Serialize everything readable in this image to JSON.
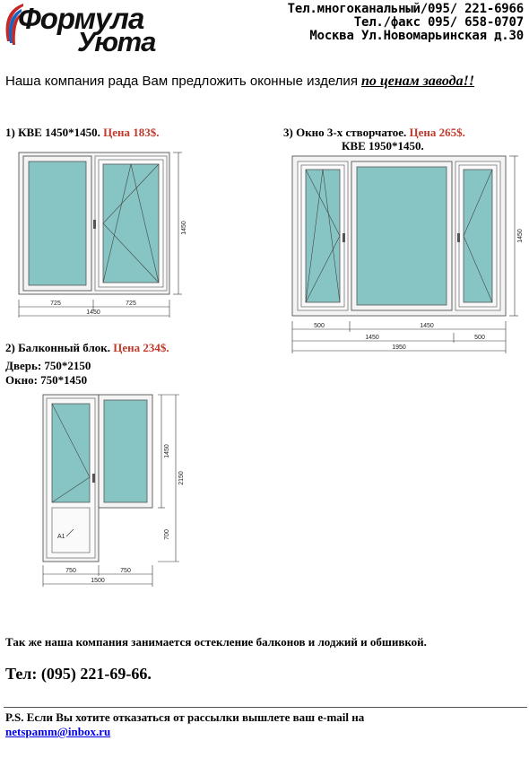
{
  "header": {
    "logo": {
      "line1": "Формула",
      "line2": "Уюта"
    },
    "contacts": [
      "Тел.многоканальный/095/ 221-6966",
      "Тел./факс 095/ 658-0707",
      "Москва  Ул.Новомарьинская  д.30"
    ]
  },
  "intro": {
    "text": "Наша компания рада Вам предложить оконные изделия",
    "promo": "по ценам завода!!"
  },
  "products": {
    "p1": {
      "title": "1) КВЕ 1450*1450.",
      "price": "Цена 183$.",
      "dims": {
        "left": "725",
        "right": "725",
        "total": "1450",
        "height": "1450"
      }
    },
    "p3": {
      "title": "3) Окно 3-х створчатое.",
      "price": "Цена 265$.",
      "subtitle": "КВЕ 1950*1450.",
      "dims": {
        "top_left": "500",
        "top_mid": "1450",
        "mid_left": "1450",
        "mid_right": "500",
        "total": "1950",
        "height": "1450"
      }
    },
    "p2": {
      "title": "2) Балконный блок.",
      "price": "Цена 234$.",
      "door": "Дверь:  750*2150",
      "window": "Окно:   750*1450",
      "dims": {
        "left": "750",
        "right": "750",
        "total": "1500",
        "h_window": "1450",
        "h_door": "2150",
        "h_low": "700",
        "mark": "А1"
      }
    }
  },
  "footer": {
    "services": "Так же наша компания занимается остекление балконов и лоджий и обшивкой.",
    "tel": "Тел:  (095) 221-69-66.",
    "ps": "P.S.  Если Вы хотите отказаться от рассылки вышлете ваш e-mail на",
    "email": "netspamm@inbox.ru"
  },
  "colors": {
    "glass": "#86c5c4",
    "price": "#c0392b",
    "link": "#0000ee"
  }
}
